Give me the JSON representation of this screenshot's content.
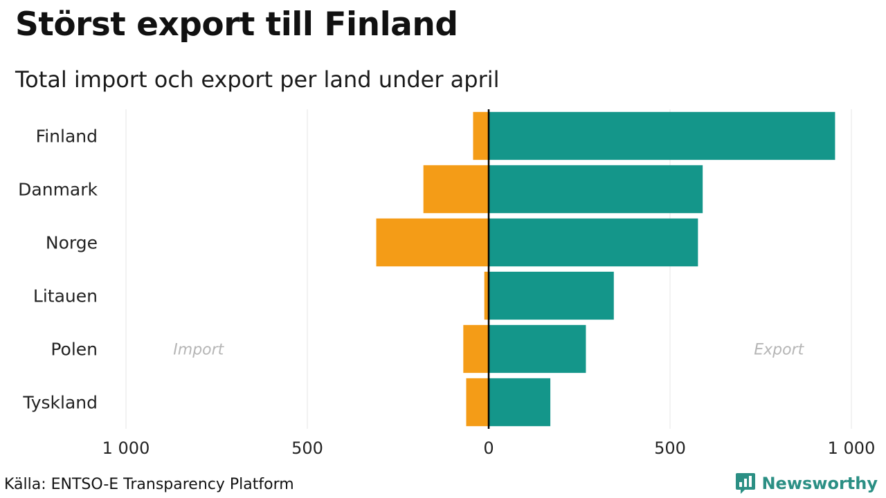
{
  "header": {
    "title": "Störst export till Finland",
    "subtitle": "Total import och export per land under april"
  },
  "footer": {
    "source": "Källa: ENTSO-E Transparency Platform",
    "brand": "Newsworthy",
    "brand_icon": "newsworthy-logo-icon"
  },
  "colors": {
    "import": "#f49c17",
    "export": "#14968a",
    "grid": "#e6e6e6",
    "zero_line": "#000000"
  },
  "chart_data": {
    "type": "bar",
    "orientation": "horizontal",
    "title": "Störst export till Finland",
    "subtitle": "Total import och export per land under april",
    "categories": [
      "Finland",
      "Danmark",
      "Norge",
      "Litauen",
      "Polen",
      "Tyskland"
    ],
    "series": [
      {
        "name": "Import",
        "values": [
          -43,
          -180,
          -310,
          -12,
          -70,
          -62
        ]
      },
      {
        "name": "Export",
        "values": [
          955,
          590,
          577,
          345,
          268,
          170
        ]
      }
    ],
    "xlim": [
      -1000,
      1000
    ],
    "xticks": [
      -1000,
      -500,
      0,
      500,
      1000
    ],
    "xtick_labels": [
      "1 000",
      "500",
      "0",
      "500",
      "1 000"
    ],
    "side_labels": {
      "left": "Import",
      "right": "Export"
    },
    "grid": true
  }
}
